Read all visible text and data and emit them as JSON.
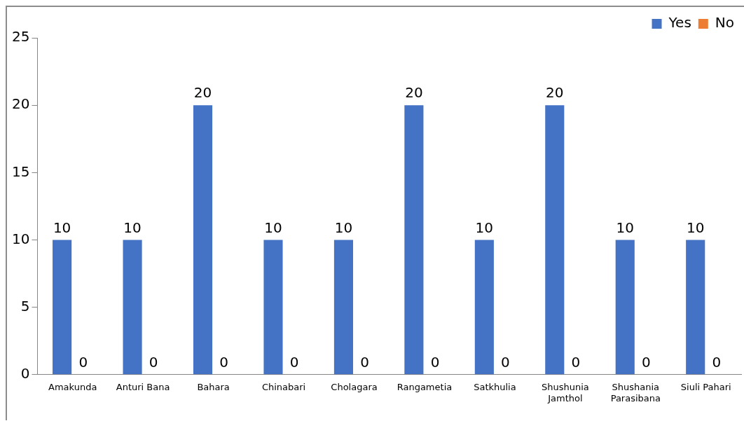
{
  "chart_data": {
    "type": "bar",
    "categories": [
      "Amakunda",
      "Anturi Bana",
      "Bahara",
      "Chinabari",
      "Cholagara",
      "Rangametia",
      "Satkhulia",
      "Shushunia Jamthol",
      "Shushania Parasibana",
      "Siuli Pahari"
    ],
    "series": [
      {
        "name": "Yes",
        "color": "#4472c4",
        "values": [
          10,
          10,
          20,
          10,
          10,
          20,
          10,
          20,
          10,
          10
        ]
      },
      {
        "name": "No",
        "color": "#ed7d31",
        "values": [
          0,
          0,
          0,
          0,
          0,
          0,
          0,
          0,
          0,
          0
        ]
      }
    ],
    "ylim": [
      0,
      25
    ],
    "yticks": [
      0,
      5,
      10,
      15,
      20,
      25
    ],
    "grid": false,
    "legend": "top right",
    "data_labels": true
  }
}
